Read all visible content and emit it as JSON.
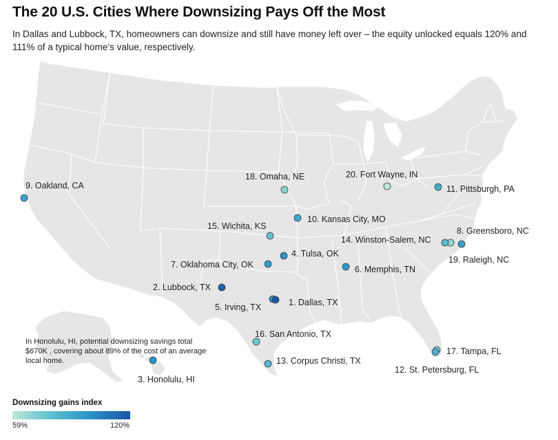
{
  "title": "The 20 U.S. Cities Where Downsizing Pays Off the Most",
  "subtitle": "In Dallas and Lubbock, TX, homeowners can downsize and still have money left over – the equity unlocked equals 120% and 111% of a typical home’s value, respectively.",
  "note": [
    "In Honolulu, HI, potential downsizing savings total",
    "$670K , covering about 89% of the cost of an average",
    "local home."
  ],
  "legend": {
    "title": "Downsizing gains index",
    "min_label": "59%",
    "max_label": "120%",
    "color_low": "#bde8d6",
    "color_high": "#1b55a8"
  },
  "cities": [
    {
      "label": "1. Dallas, TX",
      "value": 120,
      "color": "#1b55a8"
    },
    {
      "label": "2. Lubbock, TX",
      "value": 111,
      "color": "#1e62b0"
    },
    {
      "label": "3. Honolulu, HI",
      "value": 89,
      "color": "#2a91c7"
    },
    {
      "label": "4. Tulsa, OK",
      "value": 88,
      "color": "#2b93c8"
    },
    {
      "label": "5. Irving, TX",
      "value": 87,
      "color": "#2d95c8"
    },
    {
      "label": "6. Memphis, TN",
      "value": 86,
      "color": "#2f98c9"
    },
    {
      "label": "7. Oklahoma City, OK",
      "value": 85,
      "color": "#349bca"
    },
    {
      "label": "8. Greensboro, NC",
      "value": 83,
      "color": "#3aa0cb"
    },
    {
      "label": "9. Oakland, CA",
      "value": 82,
      "color": "#3da3cb"
    },
    {
      "label": "10. Kansas City, MO",
      "value": 81,
      "color": "#40a6cc"
    },
    {
      "label": "11. Pittsburgh, PA",
      "value": 79,
      "color": "#48acce"
    },
    {
      "label": "12. St. Petersburg, FL",
      "value": 77,
      "color": "#4fb1cf"
    },
    {
      "label": "13. Corpus Christi, TX",
      "value": 75,
      "color": "#56b6cf"
    },
    {
      "label": "14. Winston-Salem, NC",
      "value": 74,
      "color": "#5cbad0"
    },
    {
      "label": "15. Wichita, KS",
      "value": 72,
      "color": "#63bfd0"
    },
    {
      "label": "16. San Antonio, TX",
      "value": 70,
      "color": "#6fc6d0"
    },
    {
      "label": "17. Tampa, FL",
      "value": 68,
      "color": "#7acbd1"
    },
    {
      "label": "18. Omaha, NE",
      "value": 66,
      "color": "#88d1d2"
    },
    {
      "label": "19. Raleigh, NC",
      "value": 64,
      "color": "#98d8d3"
    },
    {
      "label": "20. Fort Wayne, IN",
      "value": 59,
      "color": "#bde8d6"
    }
  ]
}
